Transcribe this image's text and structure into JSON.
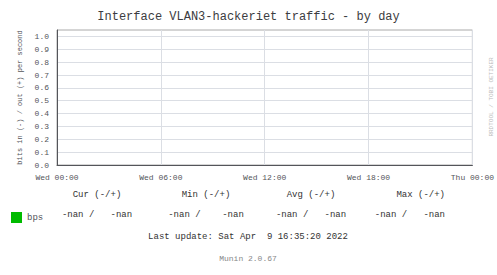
{
  "chart_data": {
    "type": "line",
    "title": "Interface VLAN3-hackeriet traffic - by day",
    "ylabel": "bits in (-) / out (+) per second",
    "categories": [
      "Wed 00:00",
      "Wed 06:00",
      "Wed 12:00",
      "Wed 18:00",
      "Thu 00:00"
    ],
    "series": [
      {
        "name": "bps",
        "color": "#00bb00",
        "values": [
          null,
          null,
          null,
          null,
          null
        ]
      }
    ],
    "ylim": [
      0.0,
      1.05
    ],
    "yticks": [
      {
        "value": 0,
        "label": "0.0"
      },
      0.1,
      0.2,
      0.3,
      0.4,
      0.5,
      0.6,
      0.7,
      0.8,
      0.9,
      {
        "value": 1,
        "label": "1.0"
      }
    ],
    "grid": true,
    "legend": "lower left",
    "annotations": [
      "Cur (-/+)",
      "Min (-/+)",
      "Avg (-/+)",
      "Max (-/+)",
      "-nan /   -nan",
      "-nan /    -nan",
      "-nan /   -nan",
      "-nan /   -nan",
      "Last update: Sat Apr  9 16:35:20 2022",
      "Munin 2.0.67",
      "RRDTOOL / TOBI OETIKER"
    ]
  }
}
